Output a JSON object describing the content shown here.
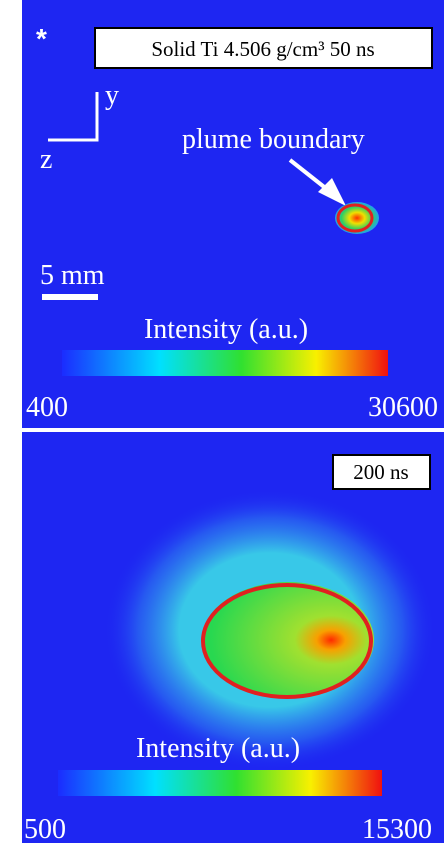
{
  "panels": [
    {
      "marker": "*",
      "label": "Solid Ti 4.506 g/cm³ 50 ns",
      "axis_y": "y",
      "axis_z": "z",
      "annotation": "plume boundary",
      "scale_bar": "5 mm",
      "colorbar": {
        "label": "Intensity (a.u.)",
        "min": 400,
        "max": 30600
      }
    },
    {
      "label": "200 ns",
      "colorbar": {
        "label": "Intensity (a.u.)",
        "min": 500,
        "max": 15300
      }
    }
  ]
}
